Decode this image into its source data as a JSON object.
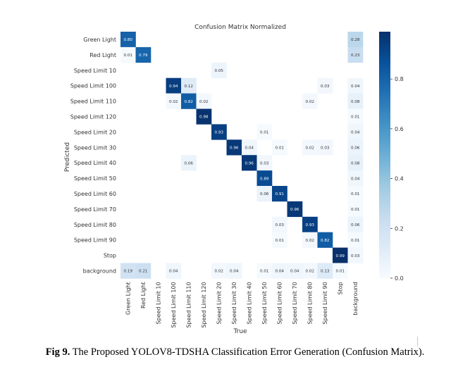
{
  "figure": {
    "caption_label": "Fig 9.",
    "caption_text": " The Proposed YOLOV8-TDSHA Classification Error Generation (Confusion Matrix)."
  },
  "chart_data": {
    "type": "heatmap",
    "title": "Confusion Matrix Normalized",
    "xlabel": "True",
    "ylabel": "Predicted",
    "labels": [
      "Green Light",
      "Red Light",
      "Speed Limit 10",
      "Speed Limit 100",
      "Speed Limit 110",
      "Speed Limit 120",
      "Speed Limit 20",
      "Speed Limit 30",
      "Speed Limit 40",
      "Speed Limit 50",
      "Speed Limit 60",
      "Speed Limit 70",
      "Speed Limit 80",
      "Speed Limit 90",
      "Stop",
      "background"
    ],
    "matrix": [
      [
        0.8,
        null,
        null,
        null,
        null,
        null,
        null,
        null,
        null,
        null,
        null,
        null,
        null,
        null,
        null,
        0.28
      ],
      [
        0.01,
        0.79,
        null,
        null,
        null,
        null,
        null,
        null,
        null,
        null,
        null,
        null,
        null,
        null,
        null,
        0.23
      ],
      [
        null,
        null,
        null,
        null,
        null,
        null,
        0.05,
        null,
        null,
        null,
        null,
        null,
        null,
        null,
        null,
        null
      ],
      [
        null,
        null,
        null,
        0.94,
        0.12,
        null,
        null,
        null,
        null,
        null,
        null,
        null,
        null,
        0.03,
        null,
        0.04
      ],
      [
        null,
        null,
        null,
        0.02,
        0.82,
        0.02,
        null,
        null,
        null,
        null,
        null,
        null,
        0.02,
        null,
        null,
        0.08
      ],
      [
        null,
        null,
        null,
        null,
        null,
        0.98,
        null,
        null,
        null,
        null,
        null,
        null,
        null,
        null,
        null,
        0.01
      ],
      [
        null,
        null,
        null,
        null,
        null,
        null,
        0.93,
        null,
        null,
        0.01,
        null,
        null,
        null,
        null,
        null,
        0.04
      ],
      [
        null,
        null,
        null,
        null,
        null,
        null,
        null,
        0.96,
        0.04,
        null,
        0.01,
        null,
        0.02,
        0.03,
        null,
        0.06
      ],
      [
        null,
        null,
        null,
        null,
        0.06,
        null,
        null,
        null,
        0.96,
        0.03,
        null,
        null,
        null,
        null,
        null,
        0.08
      ],
      [
        null,
        null,
        null,
        null,
        null,
        null,
        null,
        null,
        null,
        0.89,
        null,
        null,
        null,
        null,
        null,
        0.04
      ],
      [
        null,
        null,
        null,
        null,
        null,
        null,
        null,
        null,
        null,
        0.06,
        0.91,
        null,
        null,
        null,
        null,
        0.01
      ],
      [
        null,
        null,
        null,
        null,
        null,
        null,
        null,
        null,
        null,
        null,
        null,
        0.96,
        null,
        null,
        null,
        0.01
      ],
      [
        null,
        null,
        null,
        null,
        null,
        null,
        null,
        null,
        null,
        null,
        0.03,
        null,
        0.93,
        null,
        null,
        0.06
      ],
      [
        null,
        null,
        null,
        null,
        null,
        null,
        null,
        null,
        null,
        null,
        0.01,
        null,
        0.02,
        0.82,
        null,
        0.01
      ],
      [
        null,
        null,
        null,
        null,
        null,
        null,
        null,
        null,
        null,
        null,
        null,
        null,
        null,
        null,
        0.99,
        0.03
      ],
      [
        0.19,
        0.21,
        null,
        0.04,
        null,
        null,
        0.02,
        0.04,
        null,
        0.01,
        0.04,
        0.04,
        0.02,
        0.13,
        0.01,
        null
      ]
    ],
    "colorbar": {
      "range": [
        0,
        0.99
      ],
      "ticks": [
        0.0,
        0.2,
        0.4,
        0.6,
        0.8
      ],
      "tick_labels": [
        "0.0",
        "0.2",
        "0.4",
        "0.6",
        "0.8"
      ]
    },
    "colormap": [
      "#f7fbff",
      "#deebf7",
      "#c6dbef",
      "#9ecae1",
      "#6baed6",
      "#4292c6",
      "#2171b5",
      "#08519c",
      "#08306b"
    ]
  }
}
